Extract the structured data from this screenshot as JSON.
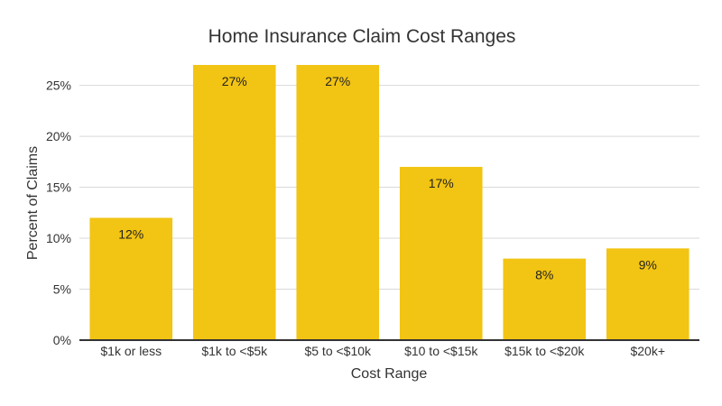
{
  "chart_data": {
    "type": "bar",
    "title": "Home Insurance Claim Cost Ranges",
    "xlabel": "Cost Range",
    "ylabel": "Percent of Claims",
    "categories": [
      "$1k or less",
      "$1k to <$5k",
      "$5 to <$10k",
      "$10 to <$15k",
      "$15k to <$20k",
      "$20k+"
    ],
    "values": [
      12,
      27,
      27,
      17,
      8,
      9
    ],
    "data_labels": [
      "12%",
      "27%",
      "27%",
      "17%",
      "8%",
      "9%"
    ],
    "ylim": [
      0,
      27
    ],
    "yticks": [
      0,
      5,
      10,
      15,
      20,
      25
    ],
    "ytick_labels": [
      "0%",
      "5%",
      "10%",
      "15%",
      "20%",
      "25%"
    ],
    "grid": true,
    "legend": "none",
    "bar_color": "#f2c413"
  }
}
